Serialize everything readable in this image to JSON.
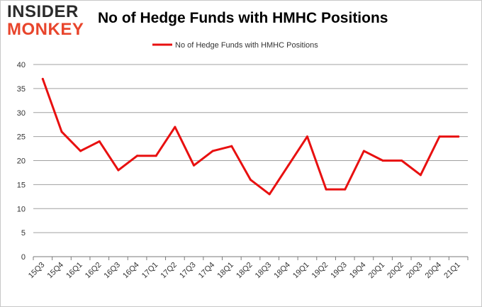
{
  "logo": {
    "line1": "INSIDER",
    "line2": "MONKEY"
  },
  "colors": {
    "line": "#e81010",
    "grid": "#a0a0a0",
    "logo_dark": "#2b2b2b",
    "logo_accent": "#e8452c"
  },
  "chart_data": {
    "type": "line",
    "title": "No of Hedge Funds with HMHC Positions",
    "xlabel": "",
    "ylabel": "",
    "ylim": [
      0,
      40
    ],
    "yticks": [
      0,
      5,
      10,
      15,
      20,
      25,
      30,
      35,
      40
    ],
    "grid": true,
    "legend_position": "top-center",
    "categories": [
      "15Q3",
      "15Q4",
      "16Q1",
      "16Q2",
      "16Q3",
      "16Q4",
      "17Q1",
      "17Q2",
      "17Q3",
      "17Q4",
      "18Q1",
      "18Q2",
      "18Q3",
      "18Q4",
      "19Q1",
      "19Q2",
      "19Q3",
      "19Q4",
      "20Q1",
      "20Q2",
      "20Q3",
      "20Q4",
      "21Q1"
    ],
    "series": [
      {
        "name": "No of Hedge Funds with HMHC Positions",
        "values": [
          37,
          26,
          22,
          24,
          18,
          21,
          21,
          27,
          19,
          22,
          23,
          16,
          13,
          19,
          25,
          14,
          14,
          22,
          20,
          20,
          17,
          25,
          25
        ]
      }
    ]
  }
}
